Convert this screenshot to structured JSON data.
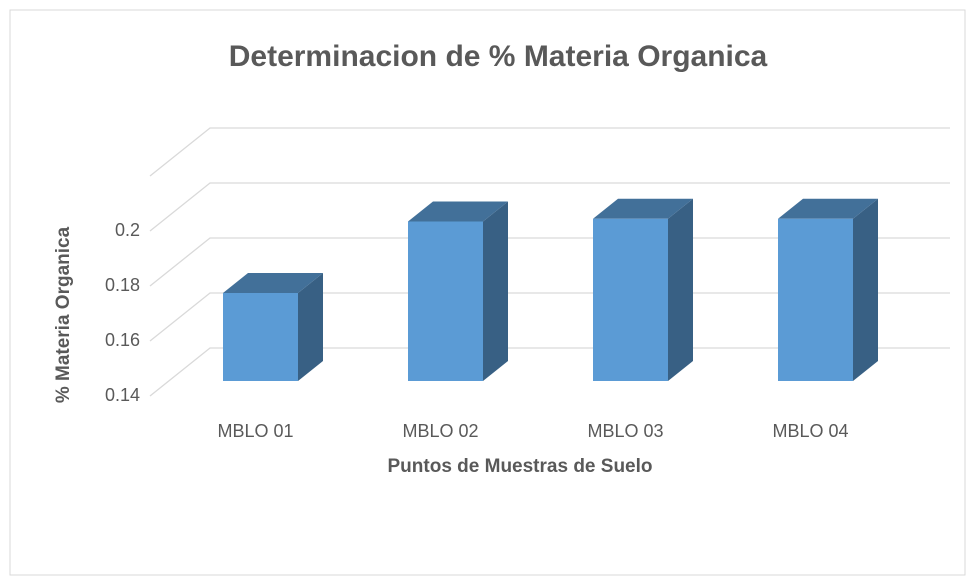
{
  "chart_data": {
    "type": "bar3d",
    "title": "Determinacion de % Materia Organica",
    "x_label": "Puntos de Muestras de Suelo",
    "y_label": "% Materia Organica",
    "categories": [
      "MBLO 01",
      "MBLO 02",
      "MBLO 03",
      "MBLO 04"
    ],
    "values": [
      0.172,
      0.198,
      0.199,
      0.199
    ],
    "color": "#5b9bd5",
    "ylim": [
      0.14,
      0.22
    ],
    "yticks": [
      0.14,
      0.16,
      0.18,
      0.2
    ],
    "grid": true
  }
}
